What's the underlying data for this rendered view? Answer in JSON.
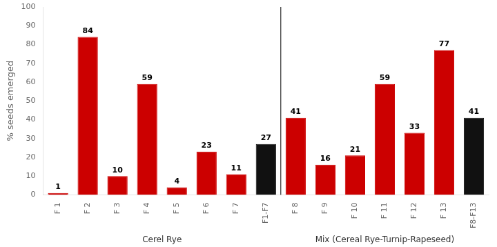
{
  "chart_data": {
    "type": "bar",
    "categories": [
      "F 1",
      "F 2",
      "F 3",
      "F 4",
      "F 5",
      "F 6",
      "F 7",
      "F1-F7",
      "F 8",
      "F 9",
      "F 10",
      "F 11",
      "F 12",
      "F 13",
      "F8-F13"
    ],
    "values": [
      1,
      84,
      10,
      59,
      4,
      23,
      11,
      27,
      41,
      16,
      21,
      59,
      33,
      77,
      41
    ],
    "colors": [
      "#cc0000",
      "#cc0000",
      "#cc0000",
      "#cc0000",
      "#cc0000",
      "#cc0000",
      "#cc0000",
      "#111111",
      "#cc0000",
      "#cc0000",
      "#cc0000",
      "#cc0000",
      "#cc0000",
      "#cc0000",
      "#111111"
    ],
    "ylabel": "% seeds emerged",
    "ylim": [
      0,
      100
    ],
    "yticks": [
      0,
      10,
      20,
      30,
      40,
      50,
      60,
      70,
      80,
      90,
      100
    ],
    "grid": false,
    "data_labels": true,
    "groups": [
      {
        "name": "Cerel Rye",
        "categories": [
          "F 1",
          "F 2",
          "F 3",
          "F 4",
          "F 5",
          "F 6",
          "F 7",
          "F1-F7"
        ]
      },
      {
        "name": "Mix (Cereal Rye-Turnip-Rapeseed)",
        "categories": [
          "F 8",
          "F 9",
          "F 10",
          "F 11",
          "F 12",
          "F 13",
          "F8-F13"
        ]
      }
    ]
  }
}
